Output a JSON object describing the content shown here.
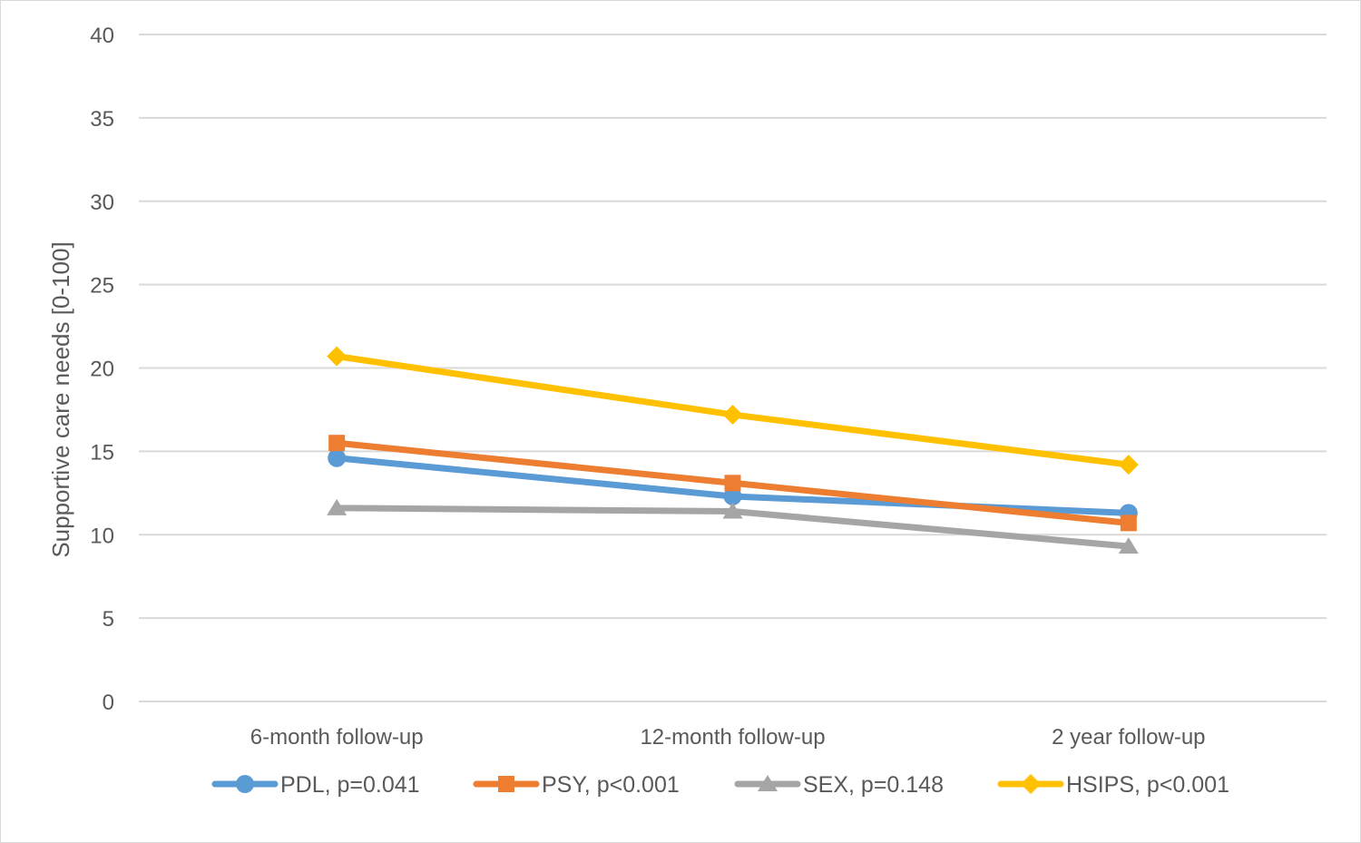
{
  "chart_data": {
    "type": "line",
    "title": "",
    "xlabel": "",
    "ylabel": "Supportive care needs [0-100]",
    "ylim": [
      0,
      40
    ],
    "yticks": [
      0,
      5,
      10,
      15,
      20,
      25,
      30,
      35,
      40
    ],
    "categories": [
      "6-month follow-up",
      "12-month follow-up",
      "2 year follow-up"
    ],
    "grid": true,
    "legend_position": "bottom",
    "series": [
      {
        "name": "PDL, p=0.041",
        "values": [
          14.6,
          12.3,
          11.3
        ],
        "color": "#5b9bd5",
        "marker": "circle"
      },
      {
        "name": "PSY, p<0.001",
        "values": [
          15.5,
          13.1,
          10.7
        ],
        "color": "#ed7d31",
        "marker": "square"
      },
      {
        "name": "SEX, p=0.148",
        "values": [
          11.6,
          11.4,
          9.3
        ],
        "color": "#a5a5a5",
        "marker": "triangle"
      },
      {
        "name": "HSIPS, p<0.001",
        "values": [
          20.7,
          17.2,
          14.2
        ],
        "color": "#ffc000",
        "marker": "diamond"
      }
    ]
  }
}
